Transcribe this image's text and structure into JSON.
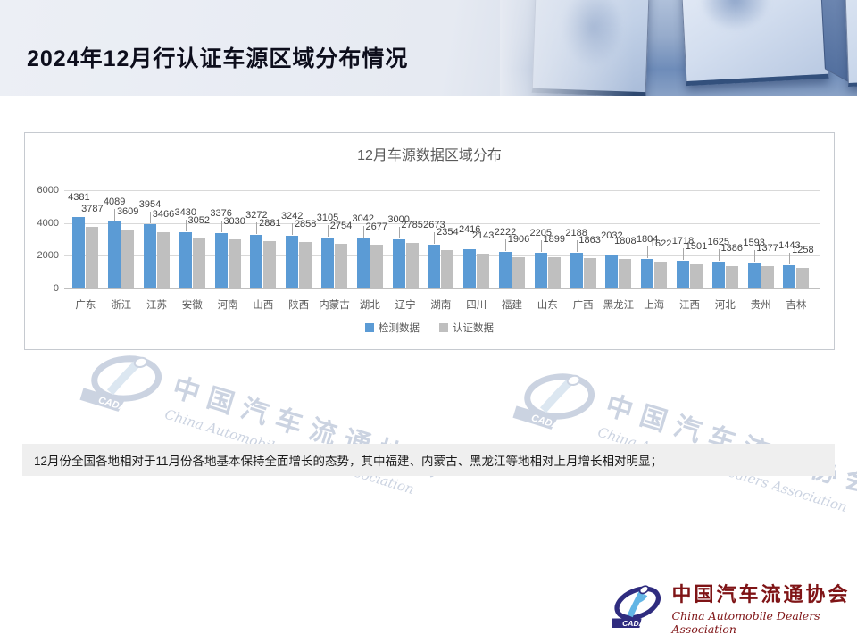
{
  "slide": {
    "title": "2024年12月行认证车源区域分布情况",
    "note": "12月份全国各地相对于11月份各地基本保持全面增长的态势，其中福建、内蒙古、黑龙江等地相对上月增长相对明显；"
  },
  "chart_data": {
    "type": "bar",
    "title": "12月车源数据区域分布",
    "categories": [
      "广东",
      "浙江",
      "江苏",
      "安徽",
      "河南",
      "山西",
      "陕西",
      "内蒙古",
      "湖北",
      "辽宁",
      "湖南",
      "四川",
      "福建",
      "山东",
      "广西",
      "黑龙江",
      "上海",
      "江西",
      "河北",
      "贵州",
      "吉林"
    ],
    "series": [
      {
        "name": "检测数据",
        "color": "#5B9BD5",
        "values": [
          4381,
          4089,
          3954,
          3430,
          3376,
          3272,
          3242,
          3105,
          3042,
          3000,
          2673,
          2416,
          2222,
          2205,
          2188,
          2032,
          1804,
          1718,
          1625,
          1593,
          1443
        ]
      },
      {
        "name": "认证数据",
        "color": "#BFBFBF",
        "values": [
          3787,
          3609,
          3466,
          3052,
          3030,
          2881,
          2858,
          2754,
          2677,
          2785,
          2354,
          2143,
          1906,
          1899,
          1863,
          1808,
          1622,
          1501,
          1386,
          1377,
          1258
        ]
      }
    ],
    "xlabel": "",
    "ylabel": "",
    "ylim": [
      0,
      6000
    ],
    "yticks": [
      0,
      2000,
      4000,
      6000
    ],
    "grid": true,
    "legend_position": "bottom",
    "data_labels": true
  },
  "logo": {
    "acronym": "CADA",
    "name_cn": "中国汽车流通协会",
    "name_en": "China Automobile Dealers Association"
  },
  "watermark": {
    "name_cn": "中国汽车流通协会",
    "name_en": "China Automobile Dealers Association"
  }
}
